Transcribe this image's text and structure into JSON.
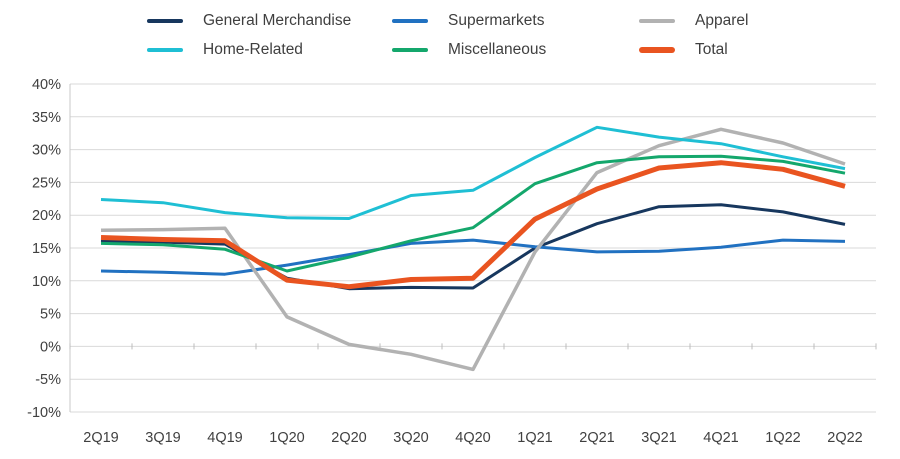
{
  "chart_data": {
    "type": "line",
    "title": "",
    "x_label": "",
    "y_label": "",
    "unit": "%",
    "grid": "horizontal",
    "legend_position": "top",
    "categories": [
      "2Q19",
      "3Q19",
      "4Q19",
      "1Q20",
      "2Q20",
      "3Q20",
      "4Q20",
      "1Q21",
      "2Q21",
      "3Q21",
      "4Q21",
      "1Q22",
      "2Q22"
    ],
    "y_axis": {
      "min": -10,
      "max": 40,
      "step": 5,
      "tick_labels": [
        "40%",
        "35%",
        "30%",
        "25%",
        "20%",
        "15%",
        "10%",
        "5%",
        "0%",
        "-5%",
        "-10%"
      ]
    },
    "series": [
      {
        "name": "General Merchandise",
        "color": "#17375e",
        "stroke_width": 3,
        "values": [
          16.1,
          15.9,
          15.6,
          10.4,
          8.8,
          9.0,
          8.9,
          15.0,
          18.7,
          21.3,
          21.6,
          20.5,
          18.6
        ]
      },
      {
        "name": "Supermarkets",
        "color": "#2171c1",
        "stroke_width": 3,
        "values": [
          11.5,
          11.3,
          11.0,
          12.4,
          14.0,
          15.7,
          16.2,
          15.2,
          14.4,
          14.5,
          15.1,
          16.2,
          16.0
        ]
      },
      {
        "name": "Apparel",
        "color": "#b2b2b2",
        "stroke_width": 3.5,
        "values": [
          17.7,
          17.8,
          18.0,
          4.5,
          0.3,
          -1.2,
          -3.5,
          14.4,
          26.5,
          30.6,
          33.1,
          31.0,
          27.8
        ]
      },
      {
        "name": "Home-Related",
        "color": "#1fbfd4",
        "stroke_width": 3,
        "values": [
          22.4,
          21.9,
          20.4,
          19.6,
          19.5,
          23.0,
          23.8,
          28.8,
          33.4,
          31.9,
          30.9,
          28.9,
          27.1
        ]
      },
      {
        "name": "Miscellaneous",
        "color": "#14a76c",
        "stroke_width": 3,
        "values": [
          15.7,
          15.5,
          14.8,
          11.5,
          13.6,
          16.1,
          18.1,
          24.8,
          28.0,
          28.9,
          29.0,
          28.2,
          26.4
        ]
      },
      {
        "name": "Total",
        "color": "#e95420",
        "stroke_width": 5,
        "values": [
          16.6,
          16.3,
          16.1,
          10.1,
          9.1,
          10.2,
          10.4,
          19.4,
          24.0,
          27.2,
          28.0,
          27.0,
          24.4
        ]
      }
    ]
  }
}
